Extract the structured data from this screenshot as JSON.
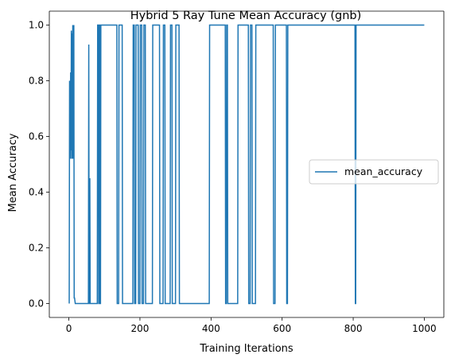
{
  "chart_data": {
    "type": "line",
    "title": "Hybrid 5 Ray Tune Mean Accuracy (gnb)",
    "xlabel": "Training Iterations",
    "ylabel": "Mean Accuracy",
    "xlim": [
      -55,
      1055
    ],
    "ylim": [
      -0.05,
      1.05
    ],
    "xticks": [
      0,
      200,
      400,
      600,
      800,
      1000
    ],
    "yticks": [
      0.0,
      0.2,
      0.4,
      0.6,
      0.8,
      1.0
    ],
    "xtick_labels": [
      "0",
      "200",
      "400",
      "600",
      "800",
      "1000"
    ],
    "ytick_labels": [
      "0.0",
      "0.2",
      "0.4",
      "0.6",
      "0.8",
      "1.0"
    ],
    "legend_position": "center-right",
    "series": [
      {
        "name": "mean_accuracy",
        "color": "#1f77b4",
        "x": [
          1,
          2,
          4,
          5,
          6,
          7,
          8,
          9,
          10,
          11,
          12,
          13,
          14,
          15,
          16,
          17,
          18,
          19,
          20,
          55,
          56,
          57,
          58,
          59,
          60,
          61,
          62,
          80,
          81,
          82,
          83,
          84,
          85,
          86,
          87,
          88,
          89,
          90,
          91,
          135,
          136,
          140,
          141,
          150,
          151,
          152,
          180,
          181,
          184,
          185,
          188,
          189,
          190,
          195,
          196,
          200,
          201,
          205,
          206,
          210,
          211,
          215,
          216,
          235,
          236,
          255,
          256,
          265,
          266,
          270,
          271,
          285,
          286,
          290,
          291,
          300,
          301,
          310,
          311,
          312,
          395,
          396,
          440,
          441,
          443,
          444,
          446,
          447,
          475,
          476,
          505,
          506,
          510,
          511,
          515,
          516,
          525,
          526,
          538,
          539,
          575,
          576,
          580,
          581,
          612,
          613,
          615,
          616,
          617,
          805,
          806,
          807,
          808,
          1000
        ],
        "values": [
          0.0,
          0.8,
          0.52,
          0.83,
          0.55,
          0.98,
          0.52,
          0.97,
          0.52,
          1.0,
          0.98,
          0.52,
          1.0,
          0.02,
          0.02,
          0.01,
          0.0,
          0.0,
          0.0,
          0.0,
          0.93,
          0.0,
          0.0,
          0.45,
          0.0,
          0.0,
          0.0,
          0.0,
          1.0,
          1.0,
          1.0,
          0.0,
          0.0,
          1.0,
          1.0,
          0.0,
          0.0,
          1.0,
          1.0,
          1.0,
          0.0,
          0.0,
          1.0,
          1.0,
          0.0,
          0.0,
          0.0,
          1.0,
          1.0,
          0.0,
          0.0,
          1.0,
          1.0,
          1.0,
          0.0,
          0.0,
          1.0,
          1.0,
          0.0,
          0.0,
          1.0,
          1.0,
          0.0,
          0.0,
          1.0,
          1.0,
          0.0,
          0.0,
          1.0,
          1.0,
          0.0,
          0.0,
          1.0,
          1.0,
          0.0,
          0.0,
          1.0,
          1.0,
          0.0,
          0.0,
          0.0,
          1.0,
          1.0,
          0.0,
          0.0,
          1.0,
          1.0,
          0.0,
          0.0,
          1.0,
          1.0,
          0.0,
          0.0,
          1.0,
          1.0,
          0.0,
          0.0,
          1.0,
          1.0,
          1.0,
          1.0,
          0.0,
          0.0,
          1.0,
          1.0,
          0.0,
          0.0,
          1.0,
          1.0,
          1.0,
          0.0,
          0.0,
          1.0,
          1.0
        ]
      }
    ]
  }
}
